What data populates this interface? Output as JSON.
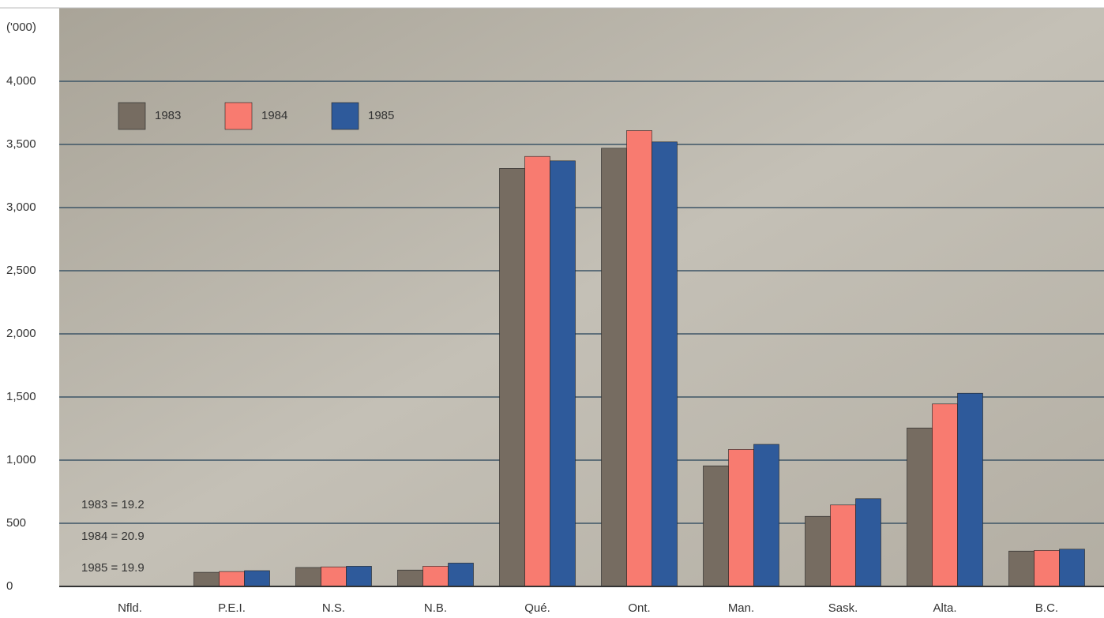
{
  "chart_data": {
    "type": "bar",
    "y_label": "('000)",
    "categories": [
      "Nfld.",
      "P.E.I.",
      "N.S.",
      "N.B.",
      "Qué.",
      "Ont.",
      "Man.",
      "Sask.",
      "Alta.",
      "B.C."
    ],
    "series": [
      {
        "name": "1983",
        "color": "#766c61",
        "values": [
          0,
          112,
          150,
          130,
          3310,
          3470,
          955,
          555,
          1255,
          280
        ]
      },
      {
        "name": "1984",
        "color": "#f87b70",
        "values": [
          0,
          118,
          155,
          160,
          3405,
          3610,
          1085,
          645,
          1445,
          285
        ]
      },
      {
        "name": "1985",
        "color": "#2e5a9b",
        "values": [
          0,
          125,
          160,
          185,
          3370,
          3520,
          1125,
          695,
          1530,
          295
        ]
      }
    ],
    "annotations": [
      "1983 = 19.2",
      "1984 = 20.9",
      "1985 = 19.9"
    ],
    "ylim": [
      0,
      4500
    ],
    "yticks": [
      0,
      500,
      {
        "value": 1000,
        "label": "1,000"
      },
      {
        "value": 1500,
        "label": "1,500"
      },
      {
        "value": 2000,
        "label": "2,000"
      },
      {
        "value": 2500,
        "label": "2,500"
      },
      {
        "value": 3000,
        "label": "3,000"
      },
      {
        "value": 3500,
        "label": "3,500"
      },
      {
        "value": 4000,
        "label": "4,000"
      }
    ],
    "grid": true,
    "legend": "top-left"
  }
}
